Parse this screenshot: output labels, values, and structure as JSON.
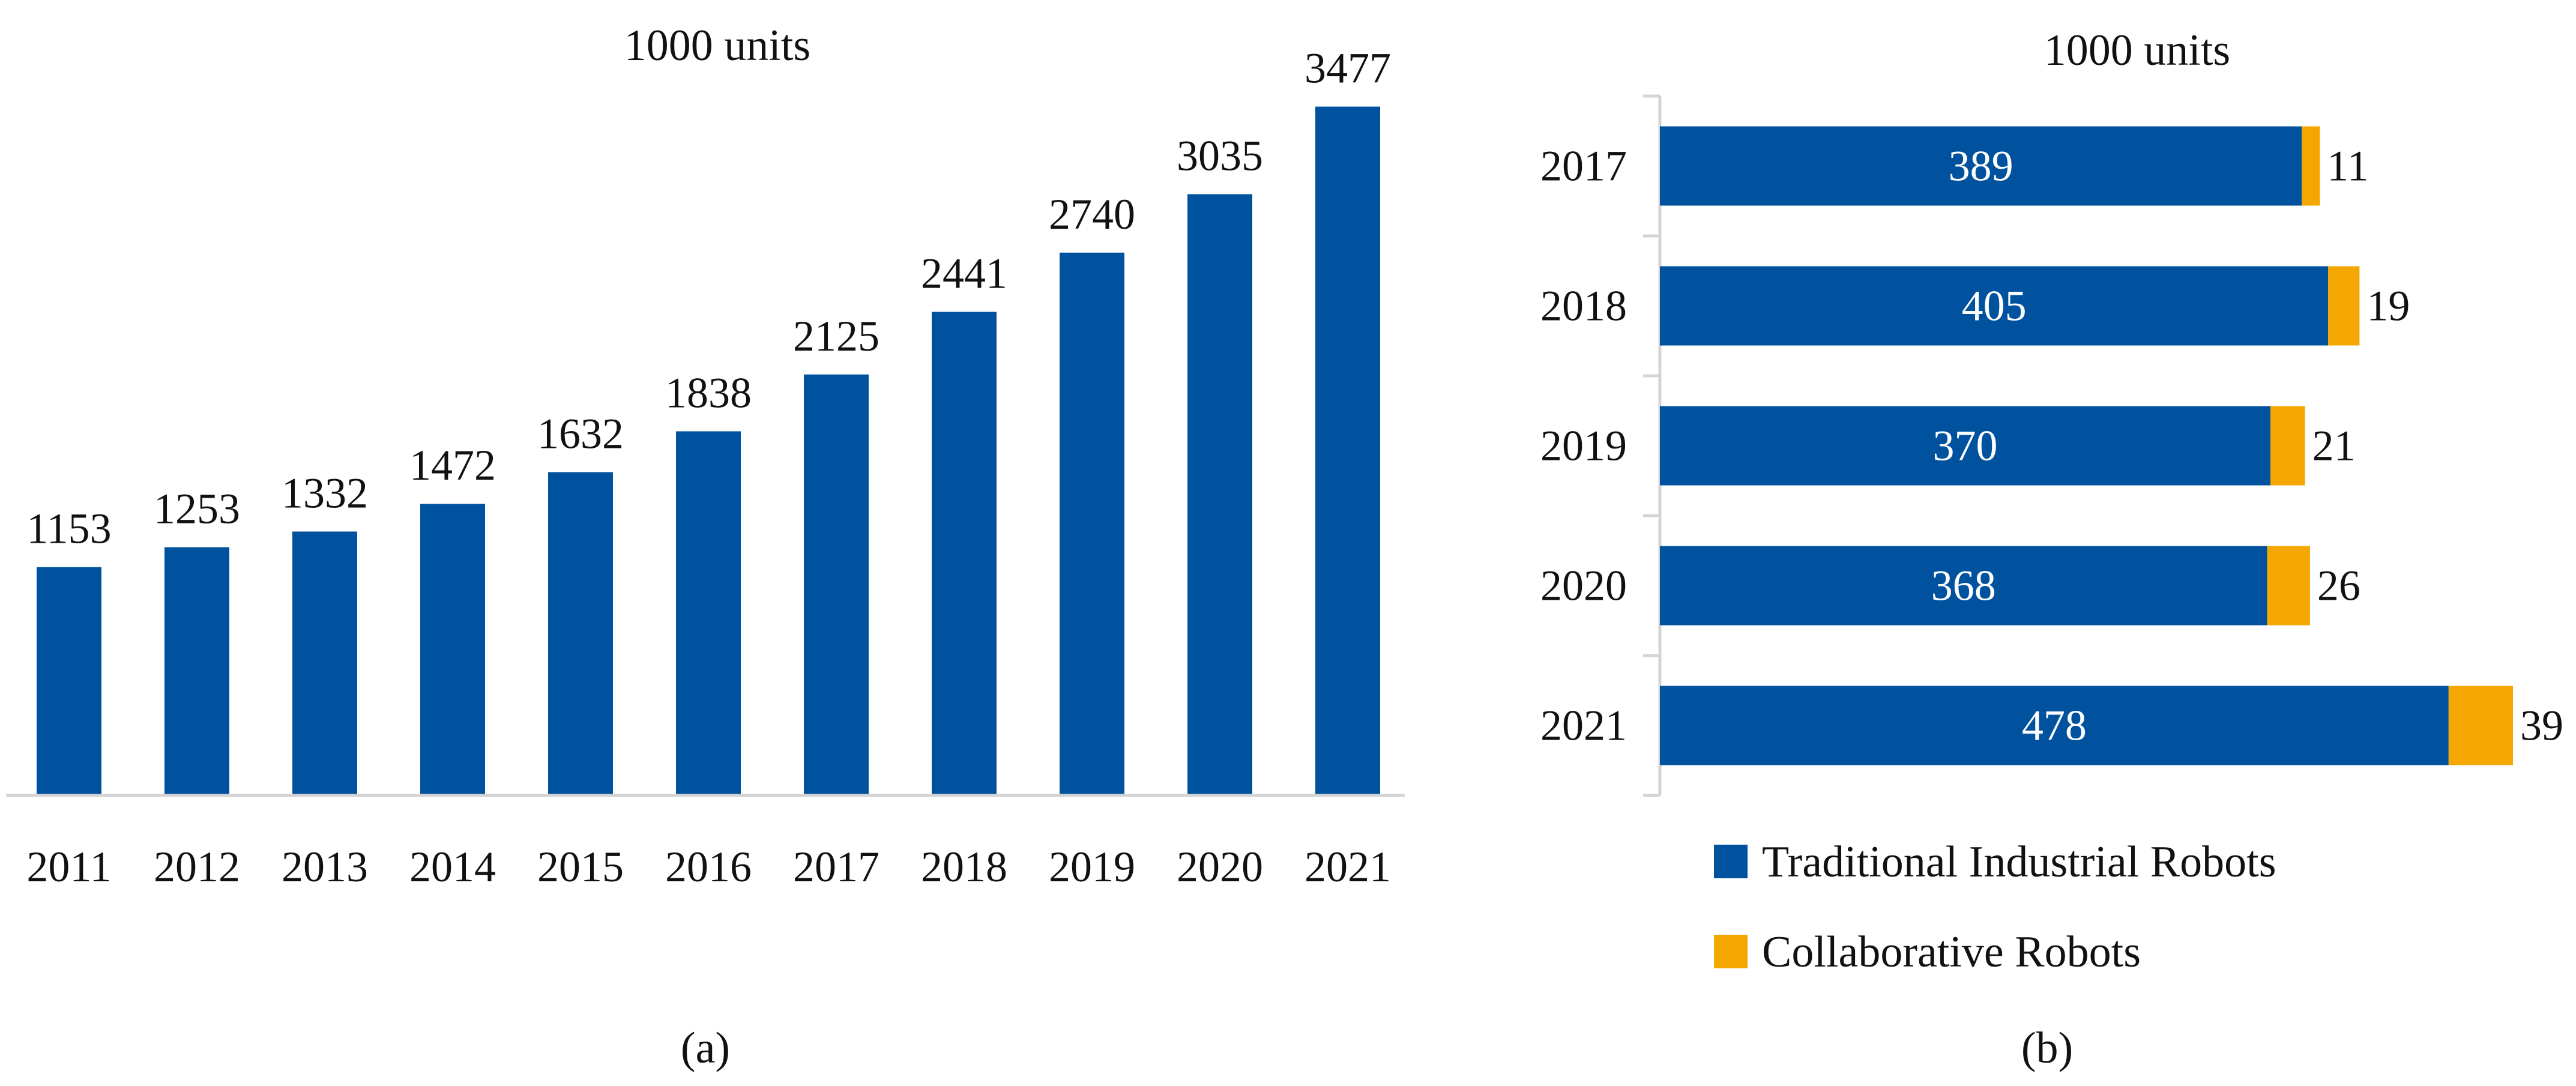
{
  "colors": {
    "bar": "#00529F",
    "collab": "#F4A700",
    "axis": "#D4D4D4",
    "text": "#111111",
    "label_inside": "#FFFFFF"
  },
  "chart_data": [
    {
      "type": "bar",
      "panel_label": "(a)",
      "title": "1000 units",
      "xlabel": "",
      "ylabel": "",
      "categories": [
        "2011",
        "2012",
        "2013",
        "2014",
        "2015",
        "2016",
        "2017",
        "2018",
        "2019",
        "2020",
        "2021"
      ],
      "values": [
        1153,
        1253,
        1332,
        1472,
        1632,
        1838,
        2125,
        2441,
        2740,
        3035,
        3477
      ],
      "ylim": [
        0,
        3500
      ],
      "grid": false
    },
    {
      "type": "bar",
      "orientation": "horizontal",
      "stacked": true,
      "panel_label": "(b)",
      "title": "1000 units",
      "categories": [
        "2017",
        "2018",
        "2019",
        "2020",
        "2021"
      ],
      "series": [
        {
          "name": "Traditional Industrial Robots",
          "values": [
            389,
            405,
            370,
            368,
            478
          ]
        },
        {
          "name": "Collaborative Robots",
          "values": [
            11,
            19,
            21,
            26,
            39
          ]
        }
      ],
      "xlim": [
        0,
        517
      ],
      "legend_position": "bottom",
      "grid": false
    }
  ]
}
